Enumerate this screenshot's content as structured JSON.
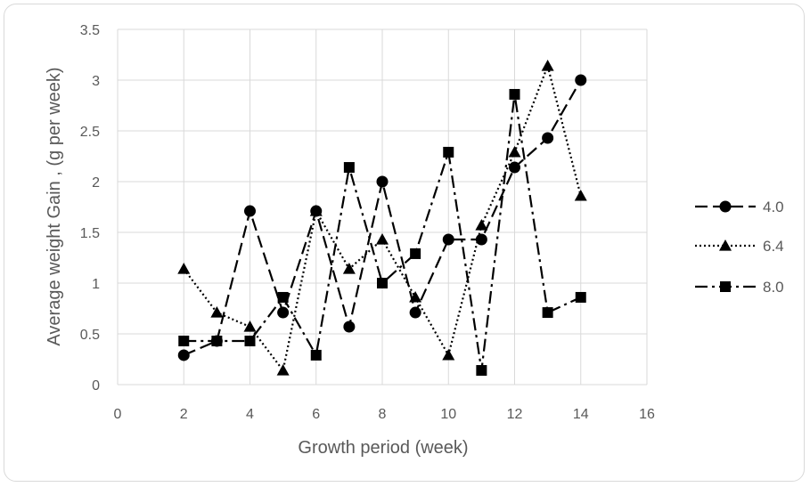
{
  "chart_data": {
    "type": "line",
    "title": "",
    "xlabel": "Growth period (week)",
    "ylabel": "Average weight Gain , (g per week)",
    "xlim": [
      0,
      16
    ],
    "ylim": [
      0,
      3.5
    ],
    "xticks": [
      "0",
      "2",
      "4",
      "6",
      "8",
      "10",
      "12",
      "14",
      "16"
    ],
    "yticks": [
      "0",
      "0.5",
      "1",
      "1.5",
      "2",
      "2.5",
      "3",
      "3.5"
    ],
    "grid": true,
    "legend_position": "right",
    "series": [
      {
        "name": "4.0",
        "marker": "circle",
        "dash": "long-dash",
        "color": "#000000",
        "x": [
          2,
          3,
          4,
          5,
          6,
          7,
          8,
          9,
          10,
          11,
          12,
          13,
          14
        ],
        "y": [
          0.29,
          0.43,
          1.71,
          0.71,
          1.71,
          0.57,
          2.0,
          0.71,
          1.43,
          1.43,
          2.14,
          2.43,
          3.0
        ]
      },
      {
        "name": "6.4",
        "marker": "triangle",
        "dash": "dotted",
        "color": "#000000",
        "x": [
          2,
          3,
          4,
          5,
          6,
          7,
          8,
          9,
          10,
          11,
          12,
          13,
          14
        ],
        "y": [
          1.14,
          0.71,
          0.57,
          0.14,
          1.71,
          1.14,
          1.43,
          0.86,
          0.29,
          1.57,
          2.29,
          3.14,
          1.86
        ]
      },
      {
        "name": "8.0",
        "marker": "square",
        "dash": "dash-dot",
        "color": "#000000",
        "x": [
          2,
          3,
          4,
          5,
          6,
          7,
          8,
          9,
          10,
          11,
          12,
          13,
          14
        ],
        "y": [
          0.43,
          0.43,
          0.43,
          0.86,
          0.29,
          2.14,
          1.0,
          1.29,
          2.29,
          0.14,
          2.86,
          0.71,
          0.86
        ]
      }
    ]
  }
}
